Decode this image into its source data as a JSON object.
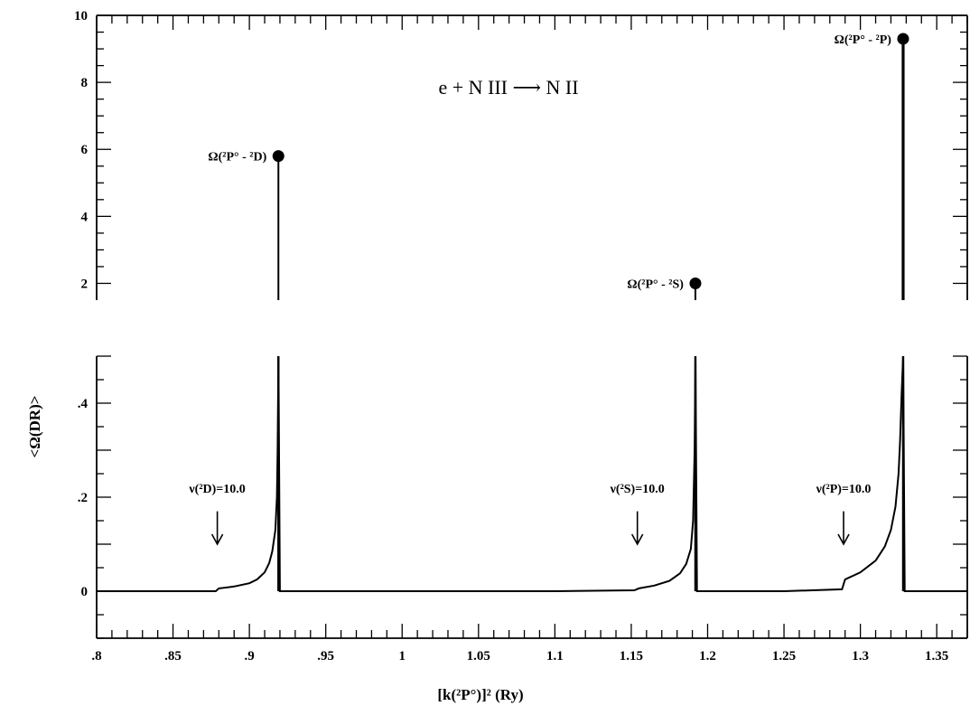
{
  "chart_data": {
    "type": "line",
    "title": "e + N III ⟶ N II",
    "xlabel": "[k(²P°)]² (Ry)",
    "ylabel": "<Ω(DR)>",
    "xlim": [
      0.8,
      1.37
    ],
    "ylim_upper": [
      1.5,
      10
    ],
    "ylim_lower": [
      -0.1,
      0.5
    ],
    "x_ticks": [
      ".8",
      ".85",
      ".9",
      ".95",
      "1",
      "1.05",
      "1.1",
      "1.15",
      "1.2",
      "1.25",
      "1.3",
      "1.35"
    ],
    "x_tick_values": [
      0.8,
      0.85,
      0.9,
      0.95,
      1.0,
      1.05,
      1.1,
      1.15,
      1.2,
      1.25,
      1.3,
      1.35
    ],
    "y_ticks_upper": [
      "10",
      "8",
      "6",
      "4",
      "2"
    ],
    "y_tick_values_upper": [
      10,
      8,
      6,
      4,
      2
    ],
    "y_ticks_lower": [
      ".4",
      ".2",
      "0"
    ],
    "y_tick_values_lower": [
      0.4,
      0.2,
      0
    ],
    "threshold_points": [
      {
        "label": "Ω(²P° - ²D)",
        "x": 0.919,
        "y": 5.8
      },
      {
        "label": "Ω(²P° - ²S)",
        "x": 1.192,
        "y": 2.0
      },
      {
        "label": "Ω(²P° - ²P)",
        "x": 1.328,
        "y": 9.3
      }
    ],
    "arrows": [
      {
        "label": "ν(²D)=10.0",
        "x": 0.879
      },
      {
        "label": "ν(²S)=10.0",
        "x": 1.154
      },
      {
        "label": "ν(²P)=10.0",
        "x": 1.289
      }
    ],
    "series": [
      {
        "x": [
          0.8,
          0.878,
          0.88,
          0.89,
          0.9,
          0.905,
          0.91,
          0.913,
          0.915,
          0.917,
          0.918,
          0.9185,
          0.919,
          0.92,
          0.95,
          1.0,
          1.05,
          1.1,
          1.152,
          1.155,
          1.165,
          1.175,
          1.182,
          1.186,
          1.189,
          1.1905,
          1.1915,
          1.192,
          1.193,
          1.22,
          1.25,
          1.288,
          1.29,
          1.3,
          1.31,
          1.316,
          1.32,
          1.323,
          1.325,
          1.326,
          1.327,
          1.328,
          1.329,
          1.35,
          1.37
        ],
        "y": [
          0,
          0,
          0.006,
          0.01,
          0.017,
          0.025,
          0.04,
          0.06,
          0.085,
          0.13,
          0.2,
          0.3,
          0.5,
          0,
          0,
          0,
          0,
          0,
          0.002,
          0.006,
          0.012,
          0.022,
          0.038,
          0.058,
          0.09,
          0.15,
          0.3,
          0.5,
          0,
          0,
          0,
          0.004,
          0.025,
          0.04,
          0.065,
          0.095,
          0.13,
          0.18,
          0.25,
          0.32,
          0.42,
          0.5,
          0,
          0,
          0
        ]
      }
    ]
  }
}
